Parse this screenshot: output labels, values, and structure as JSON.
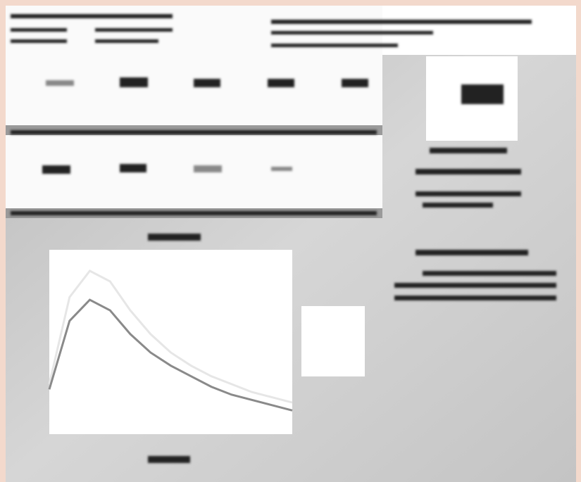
{
  "chart_data": {
    "type": "line",
    "x": [
      0,
      1,
      2,
      3,
      4,
      5,
      6,
      7,
      8,
      9,
      10,
      11,
      12
    ],
    "xlim": [
      0,
      12
    ],
    "ylim": [
      0,
      7
    ],
    "series": [
      {
        "color": "#e6e6e6",
        "values": [
          1.9,
          5.2,
          6.2,
          5.8,
          4.7,
          3.8,
          3.1,
          2.6,
          2.2,
          1.9,
          1.6,
          1.4,
          1.2
        ]
      },
      {
        "color": "#8a8a8a",
        "values": [
          1.7,
          4.3,
          5.1,
          4.7,
          3.8,
          3.1,
          2.6,
          2.2,
          1.8,
          1.5,
          1.3,
          1.1,
          0.9
        ]
      }
    ]
  }
}
